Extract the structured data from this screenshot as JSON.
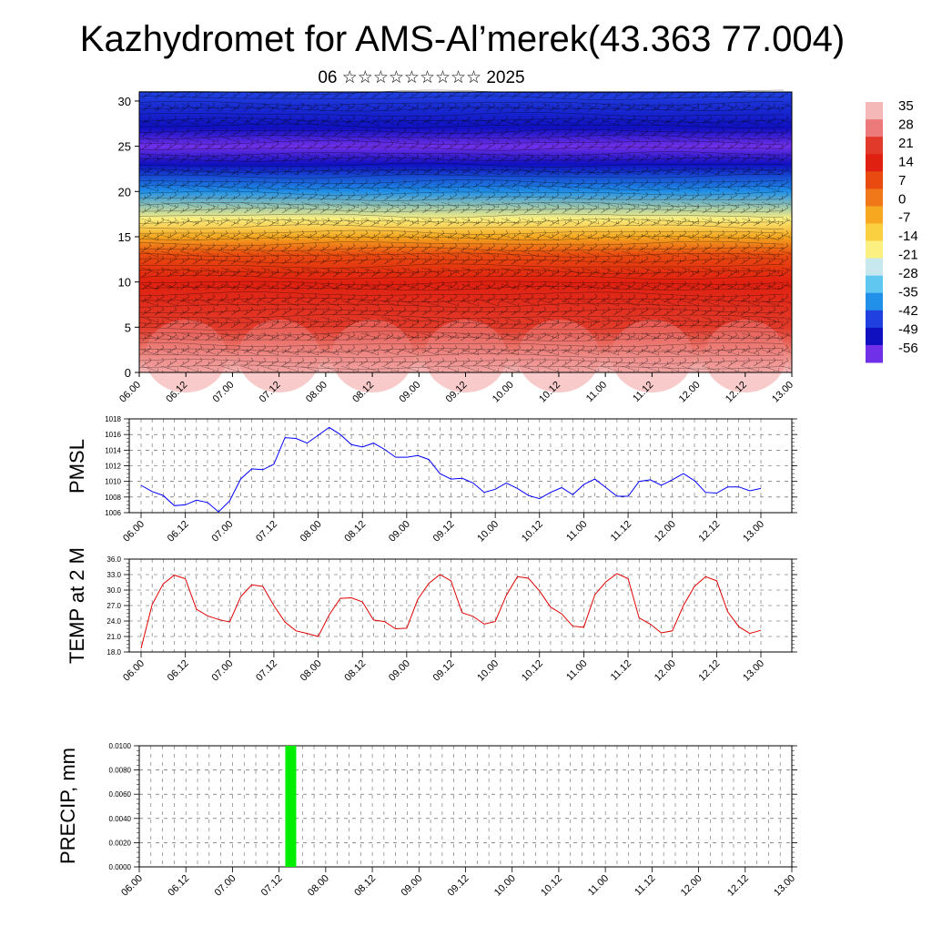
{
  "title": "Kazhydromet for AMS-Al’merek(43.363 77.004)",
  "subtitle": "06 ☆☆☆☆☆☆☆☆☆ 2025",
  "colorbar": {
    "labels": [
      "35",
      "28",
      "21",
      "14",
      "7",
      "0",
      "-7",
      "-14",
      "-21",
      "-28",
      "-35",
      "-42",
      "-49",
      "-56"
    ],
    "colors": [
      "#f4b8b8",
      "#ec7a7a",
      "#e23a2a",
      "#e02010",
      "#e84a10",
      "#f07818",
      "#f5a820",
      "#fad040",
      "#fcf080",
      "#c8e8f0",
      "#60c8f0",
      "#2090e8",
      "#2040e0",
      "#1010c0",
      "#7030e8"
    ]
  },
  "chart_data": [
    {
      "type": "heatmap",
      "name": "vertical temperature/wind profile",
      "ylim": [
        0,
        31
      ],
      "yticks": [
        "0",
        "5",
        "10",
        "15",
        "20",
        "25",
        "30"
      ],
      "xticks": [
        "06.00",
        "06.12",
        "07.00",
        "07.12",
        "08.00",
        "08.12",
        "09.00",
        "09.12",
        "10.00",
        "10.12",
        "11.00",
        "11.12",
        "12.00",
        "12.12",
        "13.00"
      ],
      "color_levels": [
        {
          "level": 0,
          "value": 32
        },
        {
          "level": 5,
          "value": 25
        },
        {
          "level": 10,
          "value": 18
        },
        {
          "level": 13,
          "value": 7
        },
        {
          "level": 15,
          "value": -7
        },
        {
          "level": 17,
          "value": -20
        },
        {
          "level": 20,
          "value": -35
        },
        {
          "level": 23,
          "value": -50
        },
        {
          "level": 25,
          "value": -56
        },
        {
          "level": 27,
          "value": -50
        },
        {
          "level": 31,
          "value": -45
        }
      ]
    },
    {
      "type": "line",
      "ylabel": "PMSL",
      "ylim": [
        1006,
        1018
      ],
      "yticks": [
        "1006",
        "1008",
        "1010",
        "1012",
        "1014",
        "1016",
        "1018"
      ],
      "xticks": [
        "06.00",
        "06.12",
        "07.00",
        "07.12",
        "08.00",
        "08.12",
        "09.00",
        "09.12",
        "10.00",
        "10.12",
        "11.00",
        "11.12",
        "12.00",
        "12.12",
        "13.00"
      ],
      "color": "#0000ff",
      "x_step_hours": 3,
      "values": [
        1009.5,
        1008.7,
        1008.2,
        1006.9,
        1007.0,
        1007.6,
        1007.3,
        1006.1,
        1007.5,
        1010.3,
        1011.6,
        1011.5,
        1012.2,
        1015.6,
        1015.5,
        1014.9,
        1015.9,
        1016.9,
        1016.0,
        1014.7,
        1014.4,
        1014.9,
        1014.1,
        1013.1,
        1013.1,
        1013.3,
        1012.8,
        1011.0,
        1010.3,
        1010.4,
        1009.8,
        1008.6,
        1009.0,
        1009.8,
        1009.1,
        1008.2,
        1007.8,
        1008.6,
        1009.2,
        1008.3,
        1009.6,
        1010.3,
        1009.2,
        1008.1,
        1008.1,
        1010.0,
        1010.2,
        1009.5,
        1010.2,
        1011.0,
        1010.1,
        1008.6,
        1008.5,
        1009.3,
        1009.3,
        1008.8,
        1009.1
      ]
    },
    {
      "type": "line",
      "ylabel": "TEMP at 2 M",
      "ylim": [
        18,
        36
      ],
      "yticks": [
        "18.0",
        "21.0",
        "24.0",
        "27.0",
        "30.0",
        "33.0",
        "36.0"
      ],
      "xticks": [
        "06.00",
        "06.12",
        "07.00",
        "07.12",
        "08.00",
        "08.12",
        "09.00",
        "09.12",
        "10.00",
        "10.12",
        "11.00",
        "11.12",
        "12.00",
        "12.12",
        "13.00"
      ],
      "color": "#e00000",
      "x_step_hours": 3,
      "values": [
        18.7,
        27.2,
        31.2,
        32.9,
        32.2,
        26.3,
        25.0,
        24.3,
        23.8,
        28.7,
        31.0,
        30.7,
        27.0,
        23.8,
        22.1,
        21.6,
        21.0,
        25.2,
        28.4,
        28.5,
        27.7,
        24.2,
        23.9,
        22.5,
        22.6,
        28.2,
        31.3,
        33.0,
        31.8,
        25.6,
        24.9,
        23.4,
        23.9,
        29.0,
        32.6,
        32.3,
        29.8,
        26.7,
        25.4,
        23.0,
        22.8,
        29.1,
        31.6,
        33.2,
        32.2,
        24.6,
        23.4,
        21.7,
        22.1,
        27.0,
        30.7,
        32.6,
        31.8,
        25.8,
        22.9,
        21.6,
        22.2
      ]
    },
    {
      "type": "bar",
      "ylabel": "PRECIP, mm",
      "ylim": [
        0,
        0.01
      ],
      "yticks": [
        "0.0000",
        "0.0020",
        "0.0040",
        "0.0060",
        "0.0080",
        "0.0100"
      ],
      "xticks": [
        "06.00",
        "06.12",
        "07.00",
        "07.12",
        "08.00",
        "08.12",
        "09.00",
        "09.12",
        "10.00",
        "10.12",
        "11.00",
        "11.12",
        "12.00",
        "12.12",
        "13.00"
      ],
      "color": "#00ee00",
      "bars": [
        {
          "x": "07.15",
          "value": 0.01
        }
      ]
    }
  ]
}
